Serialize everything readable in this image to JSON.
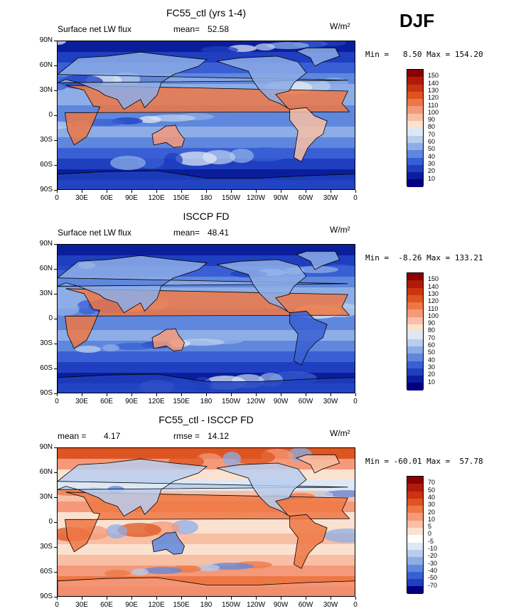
{
  "season": "DJF",
  "units": "W/m²",
  "lat_ticks": [
    "90N",
    "60N",
    "30N",
    "0",
    "30S",
    "60S",
    "90S"
  ],
  "lon_ticks": [
    "0",
    "30E",
    "60E",
    "90E",
    "120E",
    "150E",
    "180",
    "150W",
    "120W",
    "90W",
    "60W",
    "30W",
    "0"
  ],
  "panels": [
    {
      "title": "FC55_ctl (yrs 1-4)",
      "left_label": "Surface net LW flux",
      "stat_label": "mean=",
      "stat_value": "52.58",
      "minmax": "Min =   8.50 Max = 154.20",
      "colorbar": {
        "labels": [
          "150",
          "140",
          "130",
          "120",
          "110",
          "100",
          "90",
          "80",
          "70",
          "60",
          "50",
          "40",
          "30",
          "20",
          "10"
        ],
        "colors": [
          "#8b0000",
          "#b01a0a",
          "#cc3311",
          "#dd5522",
          "#ee7744",
          "#f4997a",
          "#f8bfa5",
          "#fbe1d0",
          "#dde8f4",
          "#b9cdee",
          "#8dade6",
          "#5f87dd",
          "#3a5fd4",
          "#1f3fc0",
          "#0a1e9c",
          "#000080"
        ]
      }
    },
    {
      "title": "ISCCP FD",
      "left_label": "Surface net LW flux",
      "stat_label": "mean=",
      "stat_value": "48.41",
      "minmax": "Min =  -8.26 Max = 133.21",
      "colorbar": {
        "labels": [
          "150",
          "140",
          "130",
          "120",
          "110",
          "100",
          "90",
          "80",
          "70",
          "60",
          "50",
          "40",
          "30",
          "20",
          "10"
        ],
        "colors": [
          "#8b0000",
          "#b01a0a",
          "#cc3311",
          "#dd5522",
          "#ee7744",
          "#f4997a",
          "#f8bfa5",
          "#fbe1d0",
          "#dde8f4",
          "#b9cdee",
          "#8dade6",
          "#5f87dd",
          "#3a5fd4",
          "#1f3fc0",
          "#0a1e9c",
          "#000080"
        ]
      }
    },
    {
      "title": "FC55_ctl - ISCCP FD",
      "left_label": "mean =",
      "left_value": "4.17",
      "stat_label": "rmse =",
      "stat_value": "14.12",
      "minmax": "Min = -60.01 Max =  57.78",
      "colorbar": {
        "labels": [
          "70",
          "50",
          "40",
          "30",
          "20",
          "10",
          "5",
          "0",
          "-5",
          "-10",
          "-20",
          "-30",
          "-40",
          "-50",
          "-70"
        ],
        "colors": [
          "#8b0000",
          "#b01a0a",
          "#cc3311",
          "#dd5522",
          "#ee7744",
          "#f4997a",
          "#f8bfa5",
          "#fbe1d0",
          "#ffffff",
          "#dde8f4",
          "#b9cdee",
          "#8dade6",
          "#5f87dd",
          "#3a5fd4",
          "#1f3fc0",
          "#000080"
        ]
      }
    }
  ]
}
